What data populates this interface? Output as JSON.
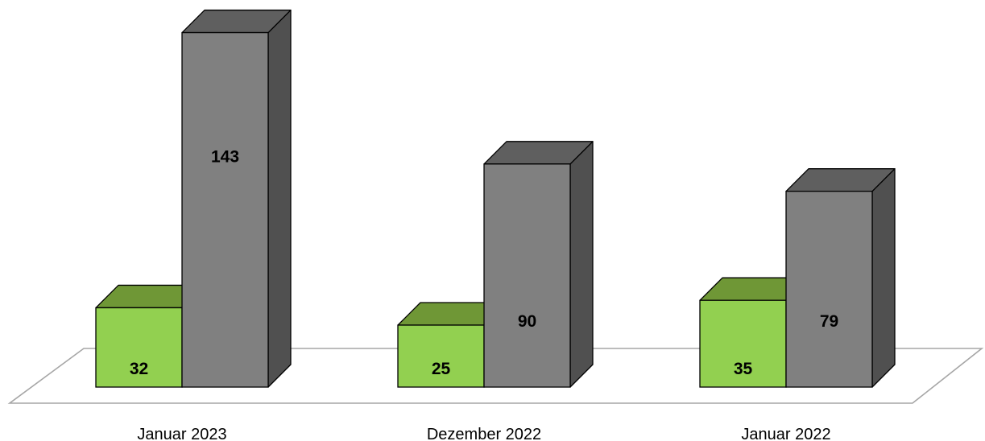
{
  "chart_data": {
    "type": "bar",
    "categories": [
      "Januar 2023",
      "Dezember 2022",
      "Januar 2022"
    ],
    "series": [
      {
        "values": [
          32,
          25,
          35
        ],
        "colors": {
          "front": "#92d050",
          "top": "#6f9736",
          "side": "#5a7d2a"
        }
      },
      {
        "values": [
          143,
          90,
          79
        ],
        "colors": {
          "front": "#808080",
          "top": "#5f5f5f",
          "side": "#505050"
        }
      }
    ],
    "style": "3d-column",
    "legend": "none",
    "grid": false,
    "floor_color": "#a6a6a6"
  }
}
